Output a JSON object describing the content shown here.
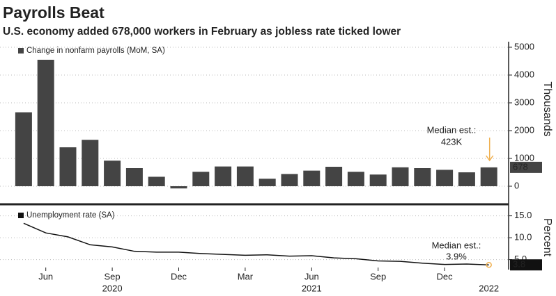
{
  "title": "Payrolls Beat",
  "subtitle": "U.S. economy added 678,000 workers in February as jobless rate ticked lower",
  "chart_data": [
    {
      "type": "bar",
      "series": [
        {
          "name": "Change in nonfarm payrolls (MoM, SA)",
          "color": "#444444",
          "values": [
            2660,
            4550,
            1400,
            1670,
            920,
            650,
            340,
            -80,
            520,
            710,
            710,
            270,
            440,
            560,
            700,
            520,
            420,
            680,
            650,
            590,
            500,
            678
          ]
        }
      ],
      "ylim": [
        -600,
        5150
      ],
      "yticks": [
        0,
        1000,
        2000,
        3000,
        4000,
        5000
      ],
      "ylabel": "Thousands",
      "grid": true,
      "annotation": [
        "Median est.:",
        "423K"
      ],
      "annotation_color": "#f0b050"
    },
    {
      "type": "line",
      "categories": [
        null,
        "Jun",
        null,
        null,
        "Sep",
        null,
        null,
        "Dec",
        null,
        null,
        "Mar",
        null,
        null,
        "Jun",
        null,
        null,
        "Sep",
        null,
        null,
        "Dec",
        null,
        null
      ],
      "years": [
        null,
        null,
        null,
        null,
        "2020",
        null,
        null,
        null,
        null,
        null,
        null,
        null,
        null,
        "2021",
        null,
        null,
        null,
        null,
        null,
        null,
        null,
        "2022"
      ],
      "series": [
        {
          "name": "Unemployment rate (SA)",
          "color": "#111111",
          "values": [
            13.3,
            11.1,
            10.2,
            8.4,
            7.9,
            6.9,
            6.7,
            6.7,
            6.4,
            6.2,
            6.0,
            6.1,
            5.8,
            5.9,
            5.4,
            5.2,
            4.7,
            4.6,
            4.2,
            3.9,
            4.0,
            3.8
          ]
        }
      ],
      "ylim": [
        3.2,
        17
      ],
      "yticks": [
        {
          "value": 5,
          "label": "5.0"
        },
        {
          "value": 10,
          "label": "10.0"
        },
        {
          "value": 15,
          "label": "15.0"
        }
      ],
      "ylabel": "Percent",
      "grid": true,
      "annotation": [
        "Median est.:",
        "3.9%"
      ],
      "annotation_color": "#f0b050"
    }
  ]
}
